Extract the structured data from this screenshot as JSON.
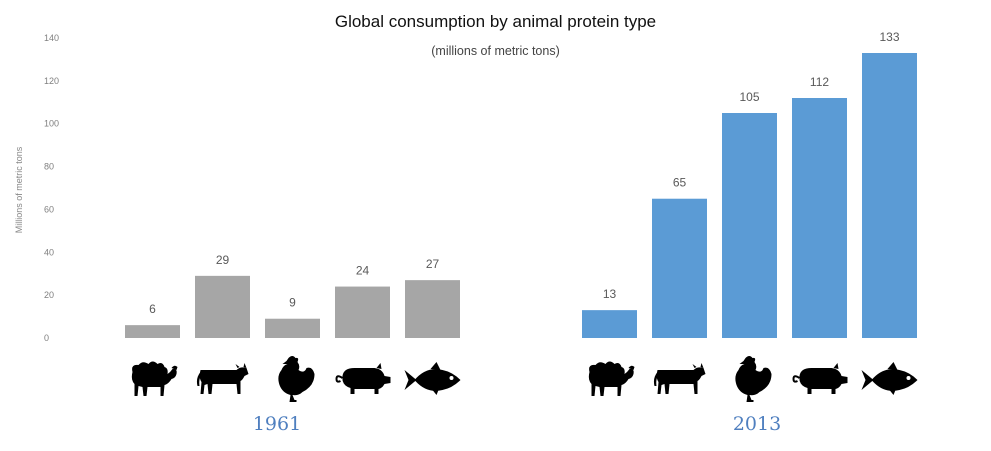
{
  "chart_data": {
    "type": "bar",
    "title": "Global consumption by animal protein type",
    "subtitle": "(millions of metric tons)",
    "ylabel": "Millions of metric tons",
    "xlabel": "",
    "ylim": [
      0,
      140
    ],
    "y_ticks": [
      0,
      20,
      40,
      60,
      80,
      100,
      120,
      140
    ],
    "grid": false,
    "legend": "none",
    "categories": [
      "sheep",
      "cattle",
      "poultry",
      "pig",
      "fish"
    ],
    "groups": [
      {
        "label": "1961",
        "color": "#a6a6a6",
        "values": [
          6,
          29,
          9,
          24,
          27
        ]
      },
      {
        "label": "2013",
        "color": "#5b9bd5",
        "values": [
          13,
          65,
          105,
          112,
          133
        ]
      }
    ]
  },
  "colors": {
    "tick_text": "#7f7f7f",
    "value_text": "#595959",
    "group_label": "#4f7fbf",
    "icon": "#000000"
  },
  "icons": [
    "sheep-icon",
    "cow-icon",
    "chicken-icon",
    "pig-icon",
    "fish-icon"
  ]
}
